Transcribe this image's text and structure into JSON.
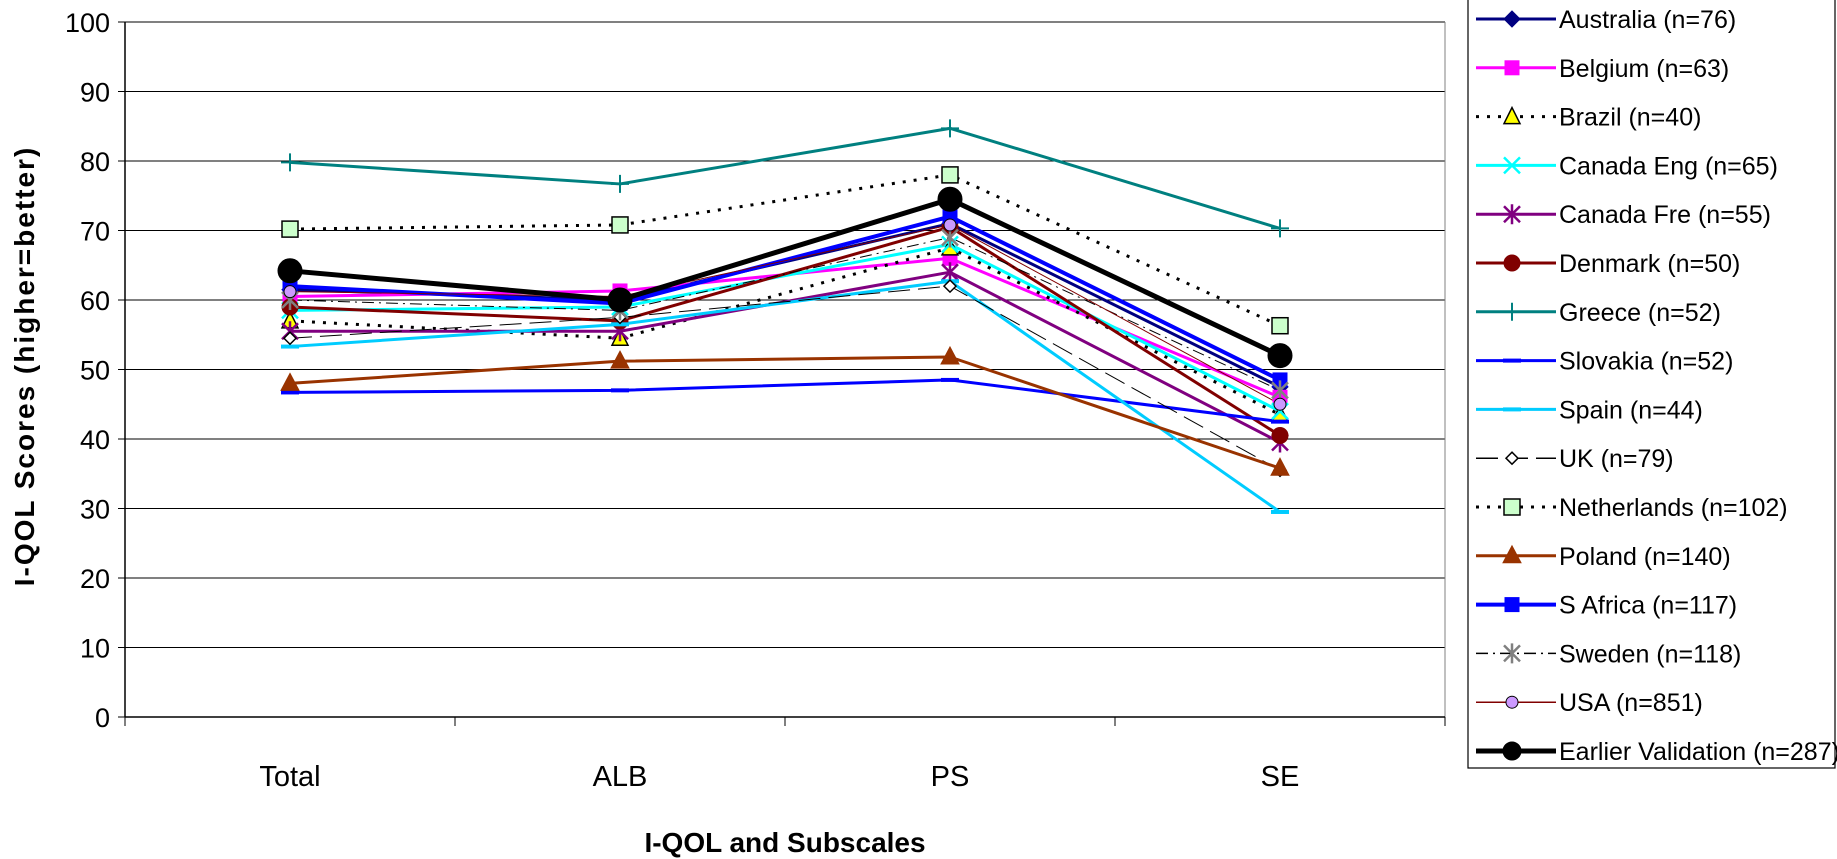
{
  "chart_data": {
    "type": "line",
    "title": "",
    "xlabel": "I-QOL and Subscales",
    "ylabel": "I-QOL Scores (higher=better)",
    "categories": [
      "Total",
      "ALB",
      "PS",
      "SE"
    ],
    "ylim": [
      0,
      100
    ],
    "yticks": [
      0,
      10,
      20,
      30,
      40,
      50,
      60,
      70,
      80,
      90,
      100
    ],
    "grid": true,
    "legend_position": "right",
    "series": [
      {
        "name": "Australia (n=76)",
        "values": [
          61.5,
          60.0,
          71.0,
          47.5
        ],
        "color": "#000080",
        "marker": "diamond",
        "dash": "solid",
        "width": 3
      },
      {
        "name": "Belgium (n=63)",
        "values": [
          60.5,
          61.3,
          66.0,
          46.0
        ],
        "color": "#ff00ff",
        "marker": "square",
        "dash": "solid",
        "width": 3
      },
      {
        "name": "Brazil (n=40)",
        "values": [
          57.0,
          54.5,
          67.5,
          43.5
        ],
        "color": "#000000",
        "marker": "triangle-yellow",
        "dash": "dotted",
        "width": 3
      },
      {
        "name": "Canada Eng (n=65)",
        "values": [
          58.5,
          59.0,
          68.0,
          44.0
        ],
        "color": "#00ffff",
        "marker": "x",
        "dash": "solid",
        "width": 3
      },
      {
        "name": "Canada Fre (n=55)",
        "values": [
          55.5,
          55.5,
          64.0,
          39.5
        ],
        "color": "#800080",
        "marker": "star",
        "dash": "solid",
        "width": 3
      },
      {
        "name": "Denmark (n=50)",
        "values": [
          59.0,
          57.0,
          70.5,
          40.5
        ],
        "color": "#800000",
        "marker": "circle",
        "dash": "solid",
        "width": 3
      },
      {
        "name": "Greece (n=52)",
        "values": [
          79.8,
          76.7,
          84.7,
          70.3
        ],
        "color": "#008080",
        "marker": "plus",
        "dash": "solid",
        "width": 3
      },
      {
        "name": "Slovakia (n=52)",
        "values": [
          46.7,
          47.0,
          48.5,
          42.5
        ],
        "color": "#0000ff",
        "marker": "dash",
        "dash": "solid",
        "width": 3
      },
      {
        "name": "Spain (n=44)",
        "values": [
          53.3,
          56.5,
          62.7,
          29.5
        ],
        "color": "#00ccff",
        "marker": "dash",
        "dash": "solid",
        "width": 3
      },
      {
        "name": "UK (n=79)",
        "values": [
          54.5,
          57.5,
          62.0,
          35.5
        ],
        "color": "#000000",
        "marker": "diamond-open",
        "dash": "longdash",
        "width": 1
      },
      {
        "name": "Netherlands (n=102)",
        "values": [
          70.2,
          70.8,
          78.0,
          56.3
        ],
        "color": "#000000",
        "marker": "square-green",
        "dash": "dotted",
        "width": 3
      },
      {
        "name": "Poland (n=140)",
        "values": [
          48.0,
          51.2,
          51.8,
          35.8
        ],
        "color": "#993300",
        "marker": "triangle",
        "dash": "solid",
        "width": 3
      },
      {
        "name": "S Africa (n=117)",
        "values": [
          62.0,
          59.5,
          72.0,
          48.5
        ],
        "color": "#0000ff",
        "marker": "square",
        "dash": "solid",
        "width": 4
      },
      {
        "name": "Sweden (n=118)",
        "values": [
          60.0,
          58.5,
          69.0,
          47.0
        ],
        "color": "#000000",
        "marker": "star-gray",
        "dash": "dashdot",
        "width": 1
      },
      {
        "name": "USA (n=851)",
        "values": [
          61.2,
          60.5,
          70.8,
          45.0
        ],
        "color": "#800000",
        "marker": "circle-lilac",
        "dash": "solid",
        "width": 1
      },
      {
        "name": "Earlier Validation (n=287)",
        "values": [
          64.2,
          60.0,
          74.5,
          52.0
        ],
        "color": "#000000",
        "marker": "circle-big",
        "dash": "solid",
        "width": 5
      }
    ]
  }
}
